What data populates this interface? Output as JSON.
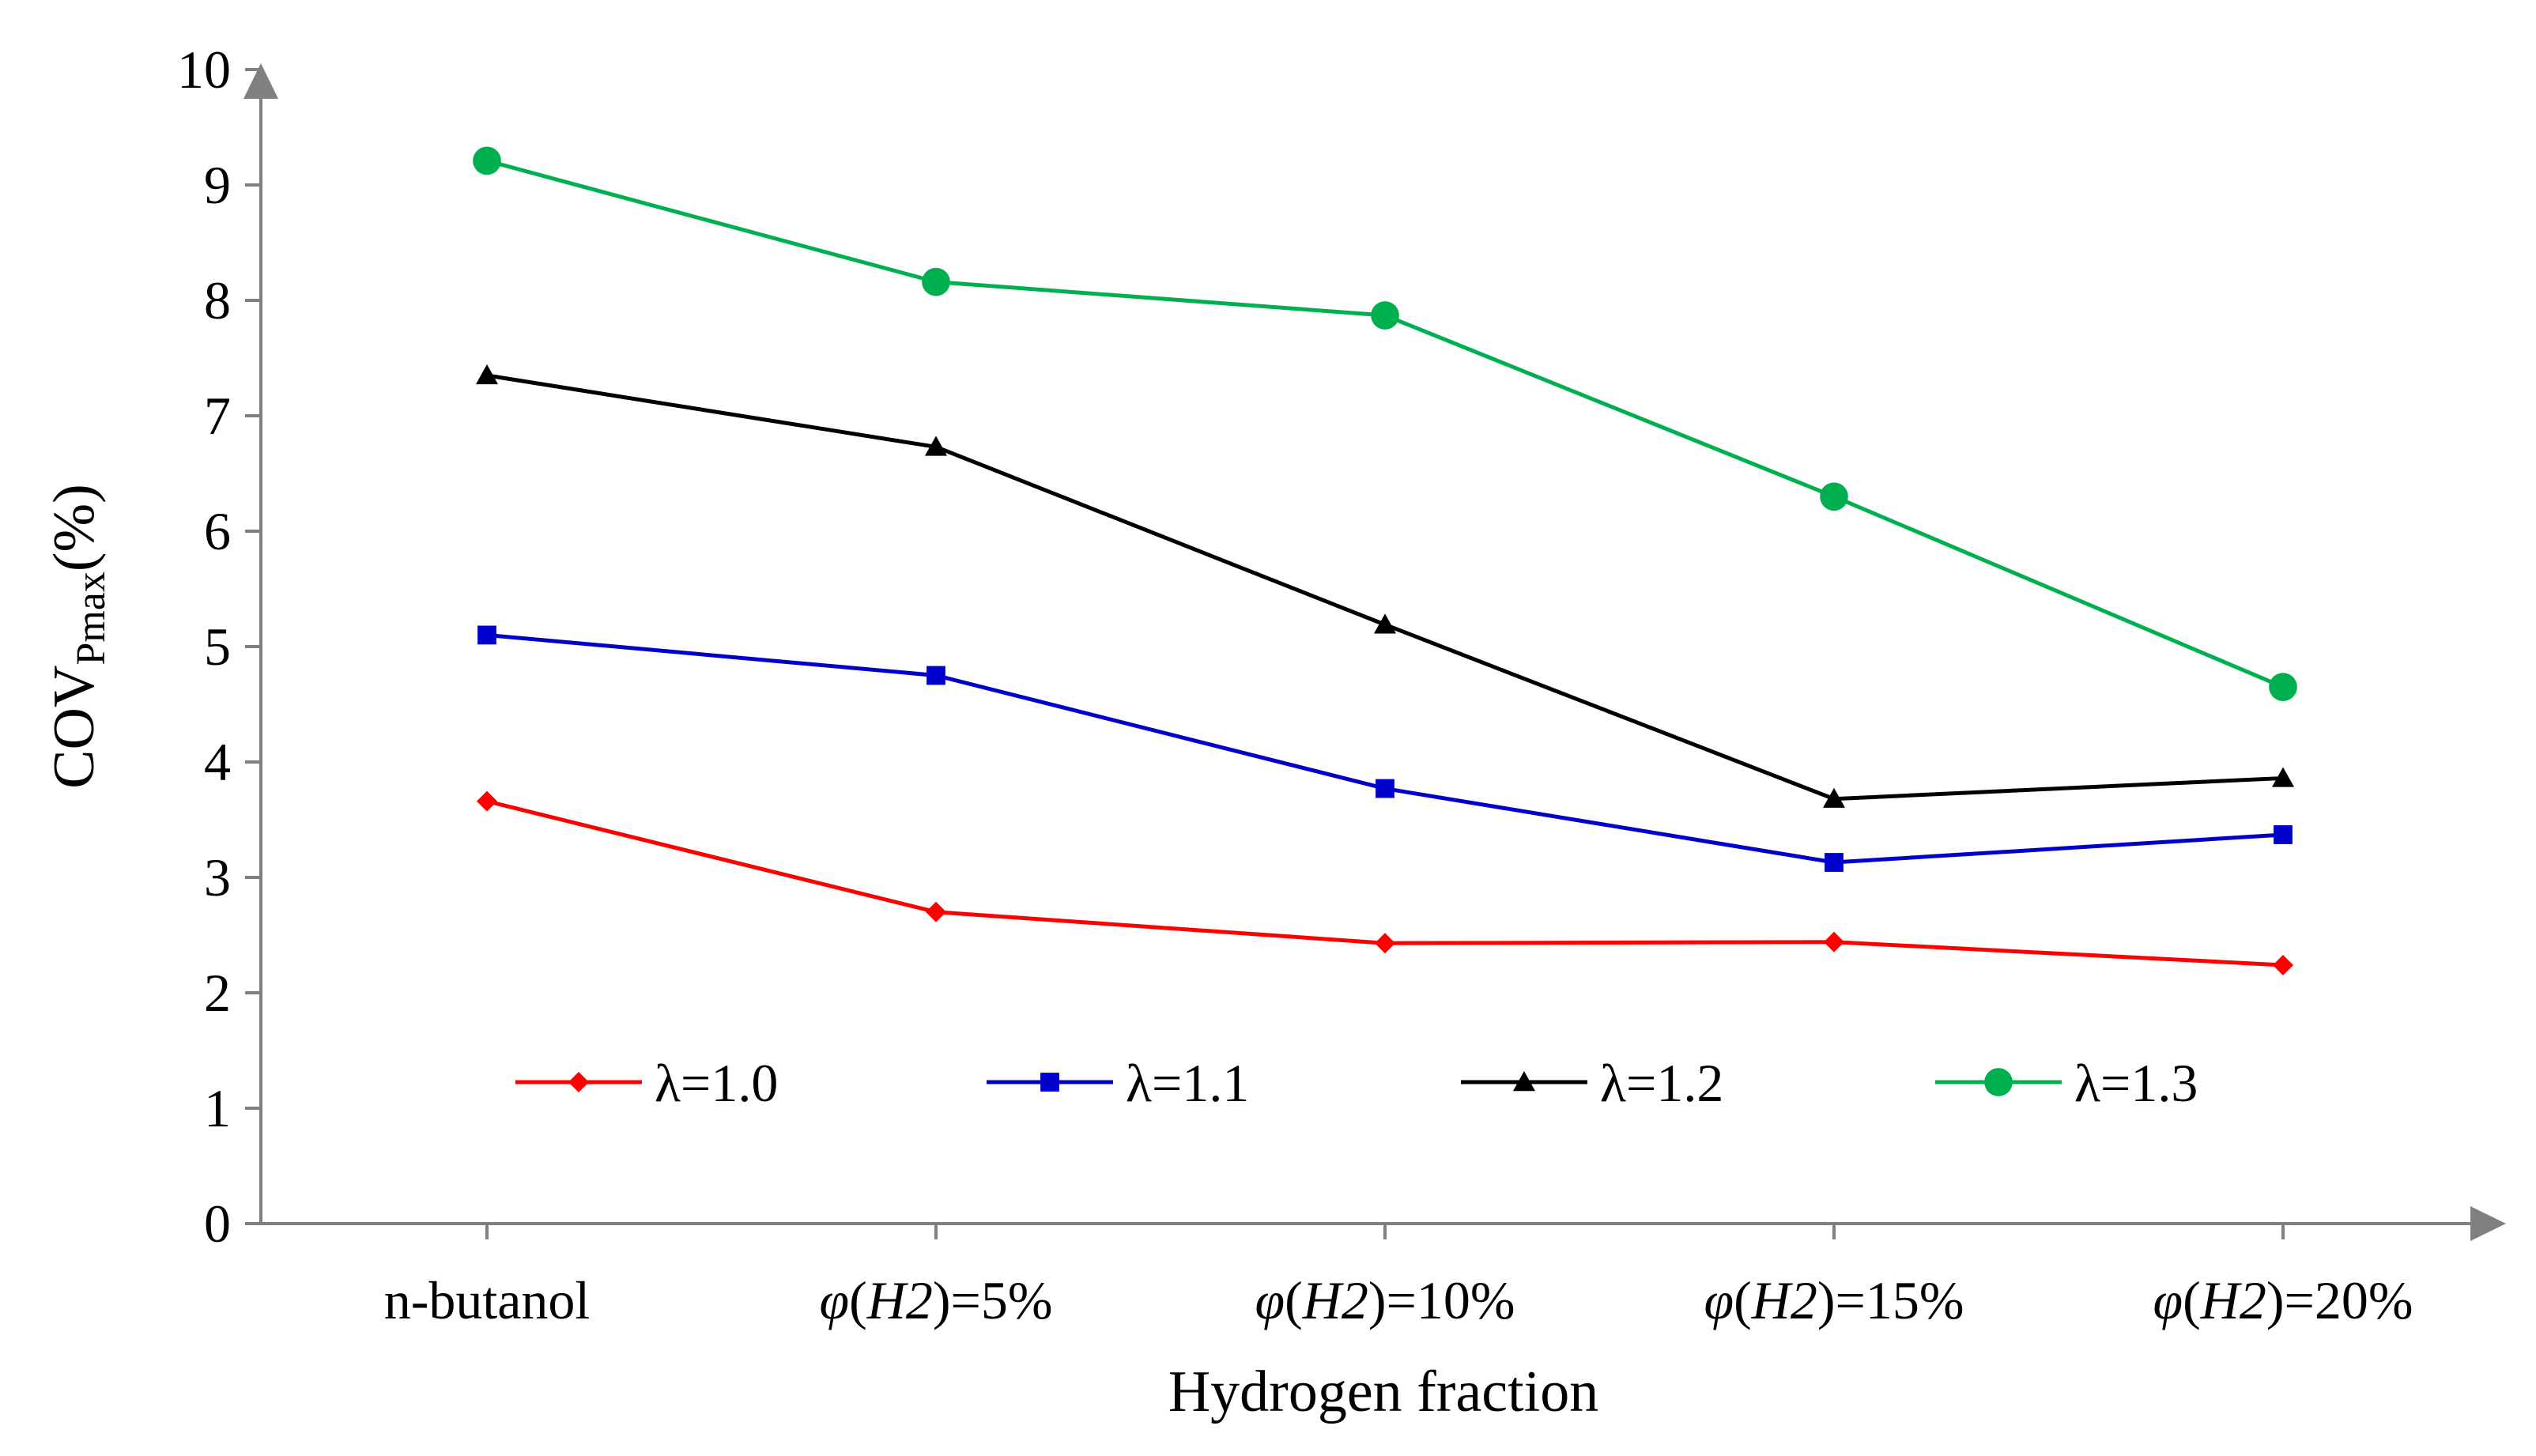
{
  "chart_data": {
    "type": "line",
    "title": "",
    "xlabel": "Hydrogen fraction",
    "ylabel": {
      "main": "COV",
      "sub": "Pmax",
      "suffix": "(%)"
    },
    "categories": [
      {
        "pre": "",
        "ital1": "",
        "mid": "n-butanol",
        "ital2": "",
        "post": ""
      },
      {
        "pre": "",
        "ital1": "φ",
        "mid": "(",
        "ital2": "H2",
        "post": ")=5%"
      },
      {
        "pre": "",
        "ital1": "φ",
        "mid": "(",
        "ital2": "H2",
        "post": ")=10%"
      },
      {
        "pre": "",
        "ital1": "φ",
        "mid": "(",
        "ital2": "H2",
        "post": ")=15%"
      },
      {
        "pre": "",
        "ital1": "φ",
        "mid": "(",
        "ital2": "H2",
        "post": ")=20%"
      }
    ],
    "ylim": [
      0,
      10
    ],
    "yticks": [
      "0",
      "1",
      "2",
      "3",
      "4",
      "5",
      "6",
      "7",
      "8",
      "9",
      "10"
    ],
    "grid": false,
    "legend_position": "bottom-inside",
    "series": [
      {
        "name": "λ=1.0",
        "color": "#ff0000",
        "marker": "diamond",
        "values": [
          3.66,
          2.7,
          2.43,
          2.44,
          2.24
        ]
      },
      {
        "name": "λ=1.1",
        "color": "#0000cc",
        "marker": "square",
        "values": [
          5.1,
          4.75,
          3.77,
          3.13,
          3.37
        ]
      },
      {
        "name": "λ=1.2",
        "color": "#000000",
        "marker": "triangle",
        "values": [
          7.35,
          6.73,
          5.19,
          3.68,
          3.86
        ]
      },
      {
        "name": "λ=1.3",
        "color": "#00b050",
        "marker": "circle",
        "values": [
          9.21,
          8.16,
          7.87,
          6.3,
          4.65
        ]
      }
    ]
  }
}
